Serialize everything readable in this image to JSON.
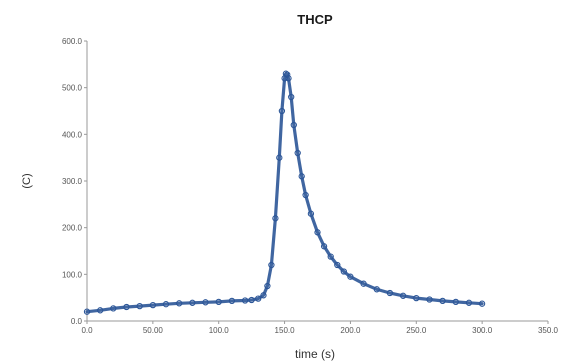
{
  "chart_data": {
    "type": "scatter",
    "title": "THCP",
    "xlabel": "time (s)",
    "ylabel": "(C)",
    "xlim": [
      0,
      350
    ],
    "ylim": [
      0,
      600
    ],
    "x_ticks": [
      "0.0",
      "50.00",
      "100.0",
      "150.0",
      "200.0",
      "250.0",
      "300.0",
      "350.0"
    ],
    "y_ticks": [
      "0.0",
      "100.0",
      "200.0",
      "300.0",
      "400.0",
      "500.0",
      "600.0"
    ],
    "grid": false,
    "legend": "none",
    "marker_color": "#2b5597",
    "series": [
      {
        "x": [
          0,
          10,
          20,
          30,
          40,
          50,
          60,
          70,
          80,
          90,
          100,
          110,
          120,
          125,
          130,
          134,
          137,
          140,
          143,
          146,
          148,
          150,
          151,
          152,
          153,
          155,
          157,
          160,
          163,
          166,
          170,
          175,
          180,
          185,
          190,
          195,
          200,
          210,
          220,
          230,
          240,
          250,
          260,
          270,
          280,
          290,
          300
        ],
        "y": [
          20,
          23,
          27,
          30,
          32,
          34,
          36,
          38,
          39,
          40,
          41,
          43,
          44,
          45,
          48,
          55,
          75,
          120,
          220,
          350,
          450,
          520,
          530,
          528,
          520,
          480,
          420,
          360,
          310,
          270,
          230,
          190,
          160,
          138,
          120,
          106,
          95,
          80,
          68,
          60,
          54,
          49,
          46,
          43,
          41,
          39,
          37
        ]
      }
    ]
  }
}
